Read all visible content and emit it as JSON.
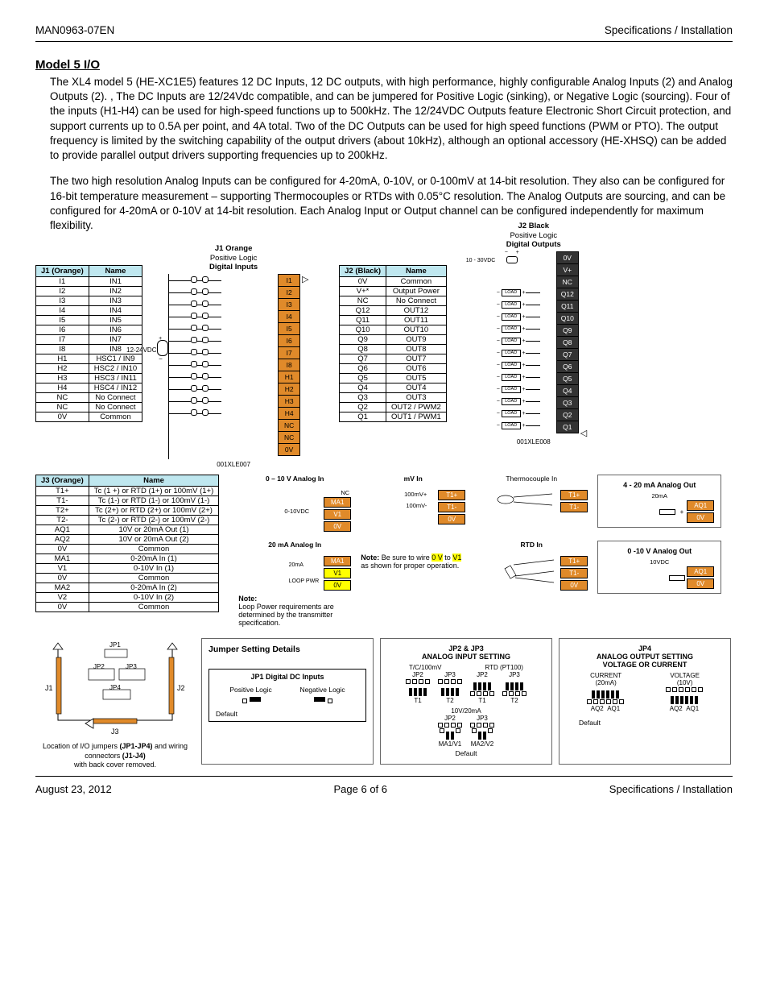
{
  "header": {
    "doc_id": "MAN0963-07EN",
    "section": "Specifications / Installation"
  },
  "title": "Model 5 I/O",
  "paragraphs": {
    "p1": "The XL4 model 5 (HE-XC1E5) features 12 DC Inputs, 12 DC outputs, with high performance, highly configurable Analog Inputs (2) and Analog Outputs (2). , The DC Inputs are 12/24Vdc compatible, and can be jumpered for Positive Logic (sinking), or Negative Logic (sourcing).  Four of the inputs (H1-H4) can be used for high-speed functions up to 500kHz. The 12/24VDC Outputs feature Electronic Short Circuit protection, and support currents up to 0.5A per point, and 4A total. Two of the DC Outputs can be used for high speed functions (PWM or PTO).  The output frequency is limited by the switching capability of the output drivers (about 10kHz), although an optional accessory (HE-XHSQ) can be added to provide parallel output drivers supporting frequencies up to 200kHz.",
    "p2": "The two high resolution Analog Inputs can be configured for 4-20mA, 0-10V, or 0-100mV at 14-bit resolution.  They also can be configured for 16-bit temperature measurement – supporting Thermocouples or RTDs with 0.05°C resolution.  The Analog Outputs are sourcing, and can be configured for 4-20mA or 0-10V at 14-bit resolution.  Each Analog Input or Output channel can be configured independently for maximum flexibility."
  },
  "j1": {
    "header": [
      "J1 (Orange)",
      "Name"
    ],
    "rows": [
      [
        "I1",
        "IN1"
      ],
      [
        "I2",
        "IN2"
      ],
      [
        "I3",
        "IN3"
      ],
      [
        "I4",
        "IN4"
      ],
      [
        "I5",
        "IN5"
      ],
      [
        "I6",
        "IN6"
      ],
      [
        "I7",
        "IN7"
      ],
      [
        "I8",
        "IN8"
      ],
      [
        "H1",
        "HSC1 / IN9"
      ],
      [
        "H2",
        "HSC2 / IN10"
      ],
      [
        "H3",
        "HSC3 / IN11"
      ],
      [
        "H4",
        "HSC4 / IN12"
      ],
      [
        "NC",
        "No Connect"
      ],
      [
        "NC",
        "No Connect"
      ],
      [
        "0V",
        "Common"
      ]
    ],
    "title": "J1 Orange",
    "subtitle1": "Positive Logic",
    "subtitle2": "Digital Inputs",
    "supply": "12-24VDC",
    "terminals": [
      "I1",
      "I2",
      "I3",
      "I4",
      "I5",
      "I6",
      "I7",
      "I8",
      "H1",
      "H2",
      "H3",
      "H4",
      "NC",
      "NC",
      "0V"
    ],
    "caption": "001XLE007"
  },
  "j2": {
    "header": [
      "J2 (Black)",
      "Name"
    ],
    "rows": [
      [
        "0V",
        "Common"
      ],
      [
        "V+*",
        "Output Power"
      ],
      [
        "NC",
        "No Connect"
      ],
      [
        "Q12",
        "OUT12"
      ],
      [
        "Q11",
        "OUT11"
      ],
      [
        "Q10",
        "OUT10"
      ],
      [
        "Q9",
        "OUT9"
      ],
      [
        "Q8",
        "OUT8"
      ],
      [
        "Q7",
        "OUT7"
      ],
      [
        "Q6",
        "OUT6"
      ],
      [
        "Q5",
        "OUT5"
      ],
      [
        "Q4",
        "OUT4"
      ],
      [
        "Q3",
        "OUT3"
      ],
      [
        "Q2",
        "OUT2 / PWM2"
      ],
      [
        "Q1",
        "OUT1 / PWM1"
      ]
    ],
    "title": "J2 Black",
    "subtitle1": "Positive Logic",
    "subtitle2": "Digital Outputs",
    "supply": "10 - 30VDC",
    "terminals": [
      "0V",
      "V+",
      "NC",
      "Q12",
      "Q11",
      "Q10",
      "Q9",
      "Q8",
      "Q7",
      "Q6",
      "Q5",
      "Q4",
      "Q3",
      "Q2",
      "Q1"
    ],
    "caption": "001XLE008"
  },
  "j3": {
    "header": [
      "J3 (Orange)",
      "Name"
    ],
    "rows": [
      [
        "T1+",
        "Tc (1 +) or RTD (1+) or 100mV (1+)"
      ],
      [
        "T1-",
        "Tc (1-) or RTD (1-) or 100mV (1-)"
      ],
      [
        "T2+",
        "Tc (2+) or RTD (2+) or 100mV (2+)"
      ],
      [
        "T2-",
        "Tc (2-) or RTD (2-) or 100mV (2-)"
      ],
      [
        "AQ1",
        "10V or 20mA Out (1)"
      ],
      [
        "AQ2",
        "10V or 20mA Out (2)"
      ],
      [
        "0V",
        "Common"
      ],
      [
        "MA1",
        "0-20mA In (1)"
      ],
      [
        "V1",
        "0-10V In (1)"
      ],
      [
        "0V",
        "Common"
      ],
      [
        "MA2",
        "0-20mA In (2)"
      ],
      [
        "V2",
        "0-10V In (2)"
      ],
      [
        "0V",
        "Common"
      ]
    ]
  },
  "analog_schems": {
    "s1": {
      "title": "0 – 10 V Analog In",
      "src": "0-10VDC",
      "t": [
        "NC",
        "MA1",
        "V1",
        "0V"
      ]
    },
    "s2": {
      "title": "mV In",
      "l1": "100mV+",
      "l2": "100mV-",
      "t": [
        "T1+",
        "T1-",
        "0V"
      ]
    },
    "s3": {
      "title": "Thermocouple In",
      "t": [
        "T1+",
        "T1-"
      ]
    },
    "s4": {
      "title": "4 - 20 mA Analog Out",
      "src": "20mA",
      "t": [
        "AQ1",
        "0V"
      ]
    },
    "s5": {
      "title": "20 mA Analog In",
      "src": "20mA",
      "loop": "LOOP PWR",
      "t": [
        "MA1",
        "V1",
        "0V"
      ]
    },
    "s6": {
      "title": "RTD In",
      "t": [
        "T1+",
        "T1-",
        "0V"
      ]
    },
    "s7": {
      "title": "0 -10 V Analog Out",
      "src": "10VDC",
      "t": [
        "AQ1",
        "0V"
      ]
    },
    "note1_b": "Note:",
    "note1": "  Be sure to wire ",
    "note1_hl1": "0 V",
    "note1_mid": "to ",
    "note1_hl2": "V1",
    "note1_end": " as shown for proper operation.",
    "note2_b": "Note:",
    "note2": "Loop Power requirements are determined by the transmitter specification."
  },
  "jumper_loc": {
    "caption1": "Location of I/O jumpers ",
    "b1": "(JP1-JP4)",
    "mid": " and wiring connectors ",
    "b2": "(J1-J4)",
    "end": "with back cover removed.",
    "jp1": "JP1",
    "jp2": "JP2",
    "jp3": "JP3",
    "jp4": "JP4",
    "j1": "J1",
    "j2": "J2",
    "j3": "J3"
  },
  "jumper_panel1": {
    "title": "Jumper Setting Details",
    "box_title": "JP1 Digital DC Inputs",
    "pos": "Positive Logic",
    "neg": "Negative Logic",
    "def": "Default"
  },
  "jumper_panel2": {
    "title_a": "JP2 & JP3",
    "title_b": "ANALOG INPUT SETTING",
    "row1": "T/C/100mV",
    "row1b": "RTD (PT100)",
    "row2": "10V/20mA",
    "jp2": "JP2",
    "jp3": "JP3",
    "t1": "T1",
    "t2": "T2",
    "ma1": "MA1/V1",
    "ma2": "MA2/V2",
    "def": "Default"
  },
  "jumper_panel3": {
    "title_a": "JP4",
    "title_b": "ANALOG OUTPUT SETTING",
    "title_c": "VOLTAGE OR CURRENT",
    "cur": "CURRENT",
    "cur2": "(20mA)",
    "vol": "VOLTAGE",
    "vol2": "(10V)",
    "aq1": "AQ1",
    "aq2": "AQ2",
    "def": "Default"
  },
  "footer": {
    "date": "August  23, 2012",
    "page": "Page 6 of 6",
    "section": "Specifications / Installation"
  },
  "colors": {
    "table_header_bg": "#bfe7ef",
    "orange": "#e08a2a",
    "black": "#333333",
    "highlight": "#ffff00"
  }
}
